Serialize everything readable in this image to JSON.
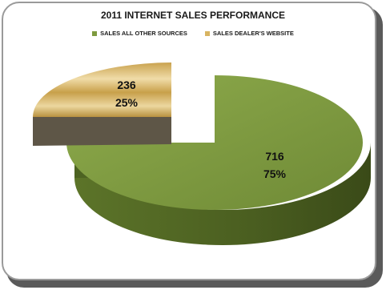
{
  "chart_data": {
    "type": "pie",
    "title": "2011 INTERNET SALES PERFORMANCE",
    "legend_position": "top",
    "series": [
      {
        "name": "SALES ALL OTHER SOURCES",
        "value": 716,
        "percent": "75%",
        "color": "#7e9a3f"
      },
      {
        "name": "SALES DEALER'S WEBSITE",
        "value": 236,
        "percent": "25%",
        "color": "#d8b462"
      }
    ],
    "data_labels": [
      {
        "value": "716",
        "percent": "75%"
      },
      {
        "value": "236",
        "percent": "25%"
      }
    ]
  }
}
